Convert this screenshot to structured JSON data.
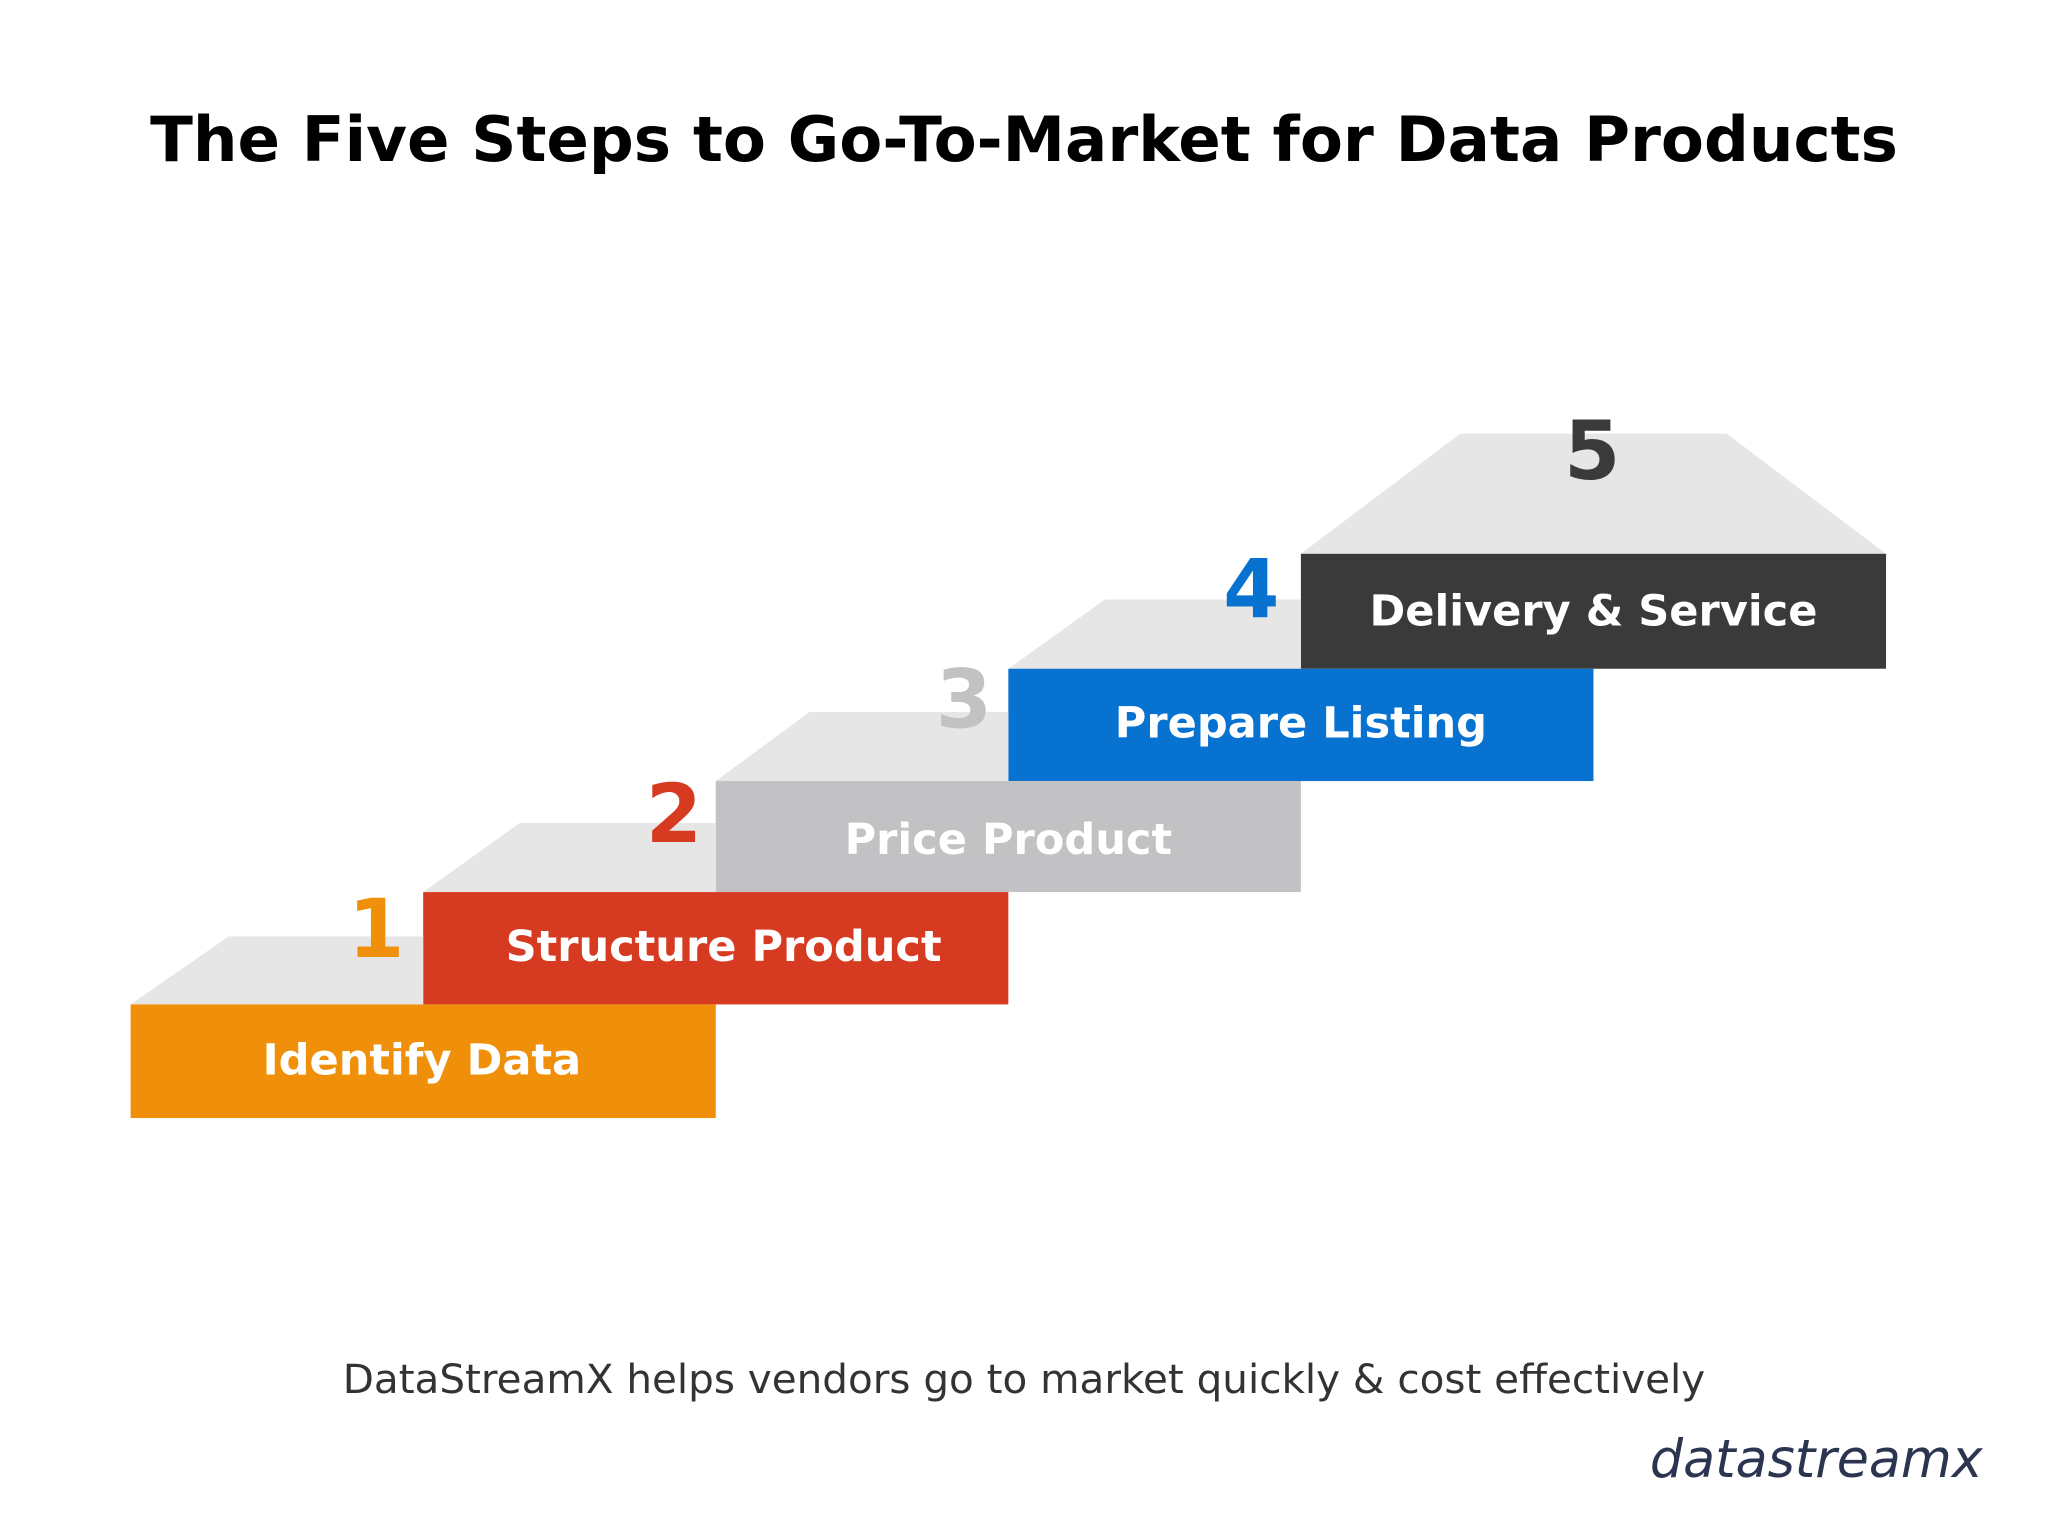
{
  "header": {
    "title": "The Five Steps to Go-To-Market for Data Products"
  },
  "steps": [
    {
      "number": 1,
      "label": "Identify Data"
    },
    {
      "number": 2,
      "label": "Structure Product"
    },
    {
      "number": 3,
      "label": "Price Product"
    },
    {
      "number": 4,
      "label": "Prepare Listing"
    },
    {
      "number": 5,
      "label": "Delivery & Service"
    }
  ],
  "footer": {
    "tagline": "DataStreamX helps vendors go to market quickly & cost effectively",
    "logo": "datastreamx"
  }
}
